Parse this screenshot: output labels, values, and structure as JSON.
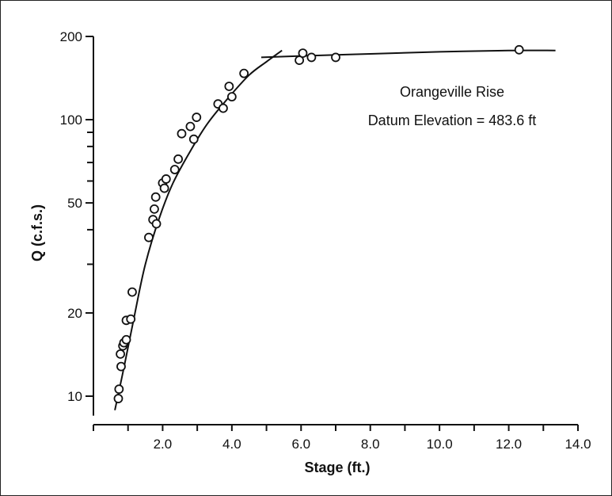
{
  "chart_data": {
    "type": "scatter",
    "xlabel": "Stage (ft.)",
    "ylabel": "Q (c.f.s.)",
    "x_scale": "linear",
    "y_scale": "log",
    "xlim": [
      0.0,
      14.0
    ],
    "ylim": [
      8.5,
      200
    ],
    "x_ticks": [
      0,
      1,
      2,
      3,
      4,
      5,
      6,
      7,
      8,
      9,
      10,
      11,
      12,
      13,
      14
    ],
    "x_tick_labels": [
      {
        "value": 2,
        "label": "2.0"
      },
      {
        "value": 4,
        "label": "4.0"
      },
      {
        "value": 6,
        "label": "6.0"
      },
      {
        "value": 8,
        "label": "8.0"
      },
      {
        "value": 10,
        "label": "10.0"
      },
      {
        "value": 12,
        "label": "12.0"
      },
      {
        "value": 14,
        "label": "14.0"
      }
    ],
    "y_ticks": [
      10,
      20,
      30,
      40,
      50,
      60,
      70,
      80,
      90,
      100,
      200
    ],
    "y_tick_labels": [
      {
        "value": 10,
        "label": "10"
      },
      {
        "value": 20,
        "label": "20"
      },
      {
        "value": 50,
        "label": "50"
      },
      {
        "value": 100,
        "label": "100"
      },
      {
        "value": 200,
        "label": "200"
      }
    ],
    "annotation": [
      "Orangeville Rise",
      "Datum Elevation = 483.6 ft"
    ],
    "grid": false,
    "points": [
      [
        0.72,
        9.8
      ],
      [
        0.74,
        10.6
      ],
      [
        0.78,
        14.2
      ],
      [
        0.8,
        12.8
      ],
      [
        0.85,
        15.2
      ],
      [
        0.88,
        15.6
      ],
      [
        0.95,
        16.0
      ],
      [
        0.95,
        18.8
      ],
      [
        1.08,
        19.0
      ],
      [
        1.12,
        23.8
      ],
      [
        1.6,
        37.5
      ],
      [
        1.72,
        43.5
      ],
      [
        1.76,
        47.5
      ],
      [
        1.8,
        52.5
      ],
      [
        1.82,
        42.0
      ],
      [
        2.0,
        59.0
      ],
      [
        2.05,
        56.5
      ],
      [
        2.1,
        61.0
      ],
      [
        2.35,
        66.0
      ],
      [
        2.45,
        72.0
      ],
      [
        2.55,
        89.0
      ],
      [
        2.8,
        94.5
      ],
      [
        2.9,
        85.0
      ],
      [
        2.98,
        102.0
      ],
      [
        3.6,
        114.0
      ],
      [
        3.75,
        110.0
      ],
      [
        3.92,
        132.0
      ],
      [
        4.0,
        121.0
      ],
      [
        4.35,
        147.0
      ],
      [
        5.95,
        164.0
      ],
      [
        6.05,
        174.0
      ],
      [
        6.3,
        168.0
      ],
      [
        7.0,
        168.0
      ],
      [
        12.3,
        179.0
      ]
    ],
    "fit_curves": [
      {
        "name": "",
        "points": [
          [
            0.62,
            8.9
          ],
          [
            0.9,
            13.0
          ],
          [
            1.2,
            20.0
          ],
          [
            1.5,
            30.0
          ],
          [
            1.9,
            44.0
          ],
          [
            2.3,
            59.0
          ],
          [
            2.8,
            77.0
          ],
          [
            3.3,
            97.0
          ],
          [
            3.9,
            120.0
          ],
          [
            4.5,
            145.0
          ],
          [
            5.0,
            162.0
          ],
          [
            5.45,
            178.0
          ]
        ]
      },
      {
        "name": "",
        "points": [
          [
            4.85,
            168.0
          ],
          [
            6.0,
            170.0
          ],
          [
            8.0,
            173.0
          ],
          [
            10.0,
            176.0
          ],
          [
            12.0,
            178.0
          ],
          [
            13.35,
            178.0
          ]
        ]
      }
    ]
  }
}
